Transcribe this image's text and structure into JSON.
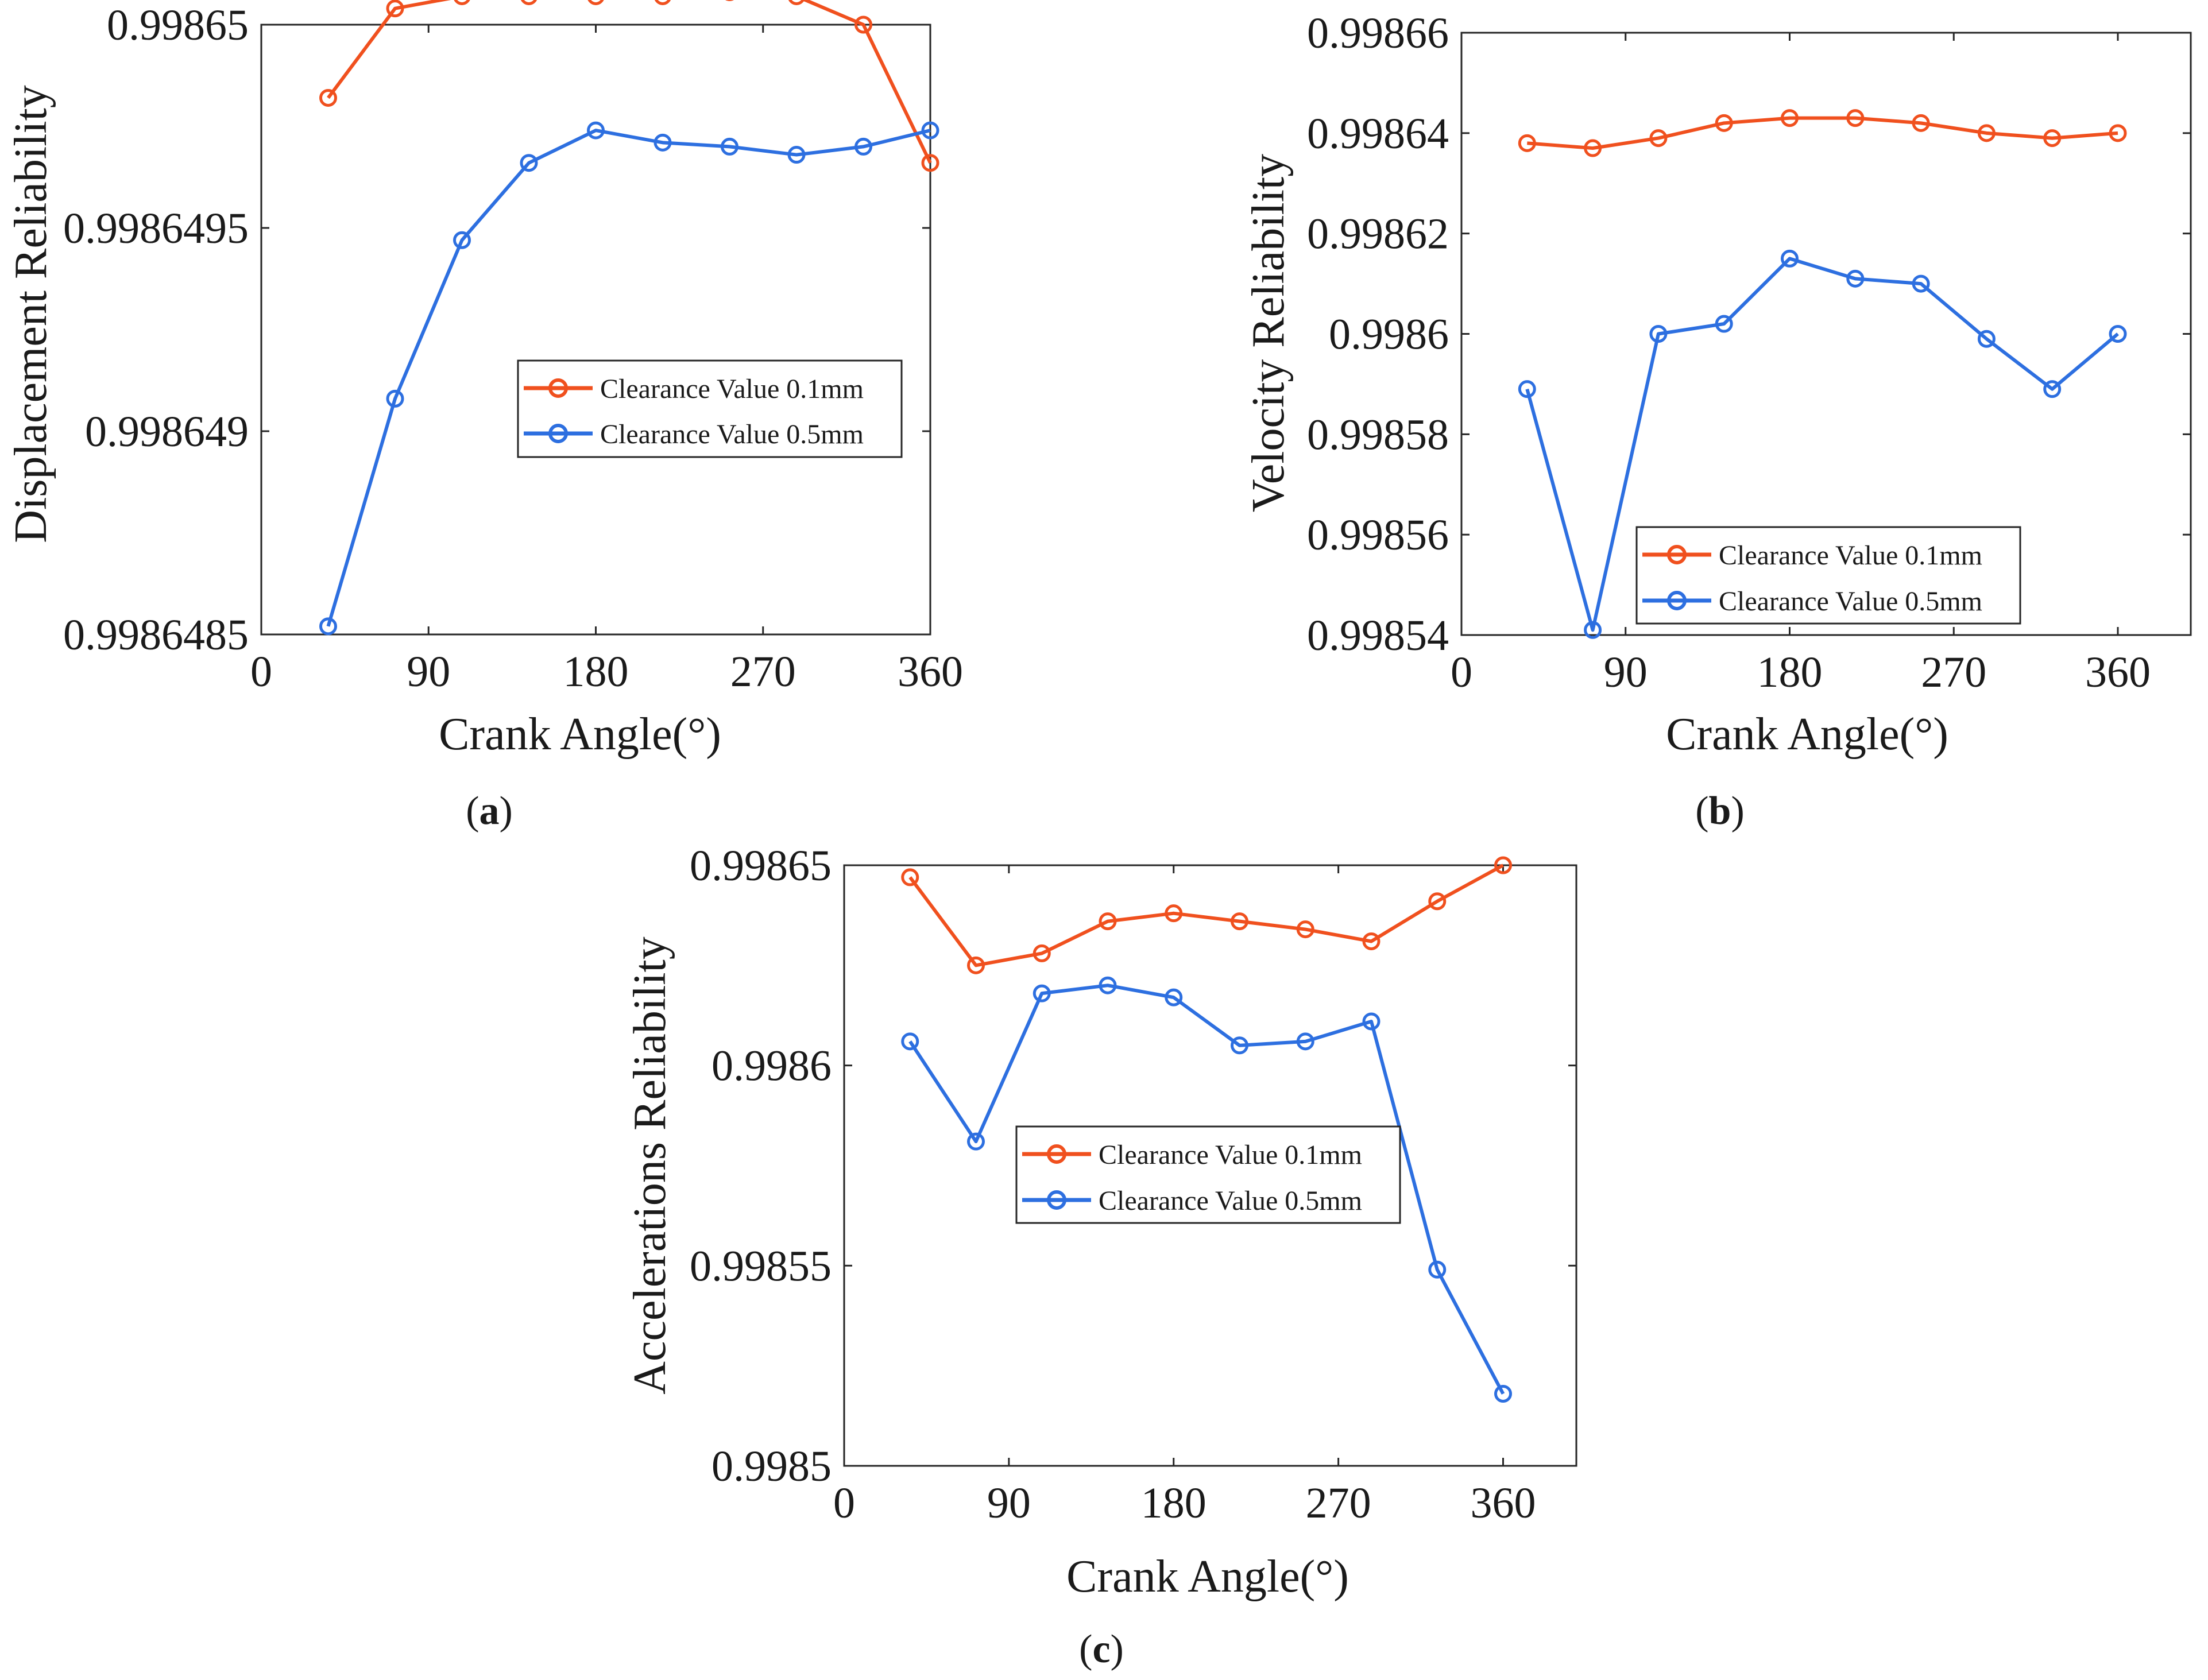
{
  "figure": {
    "legend": [
      "Clearance Value 0.1mm",
      "Clearance Value 0.5mm"
    ],
    "colors": {
      "series_0.1mm": "#f0501e",
      "series_0.5mm": "#2d6fe0",
      "axis": "#262626"
    }
  },
  "chart_data": [
    {
      "panel": "a",
      "type": "line",
      "title": "",
      "xlabel": "Crank Angle(°)",
      "ylabel": "Displacement Reliability",
      "xlim": [
        0,
        360
      ],
      "xticks": [
        0,
        90,
        180,
        270,
        360
      ],
      "xtick_labels": [
        "0",
        "90",
        "180",
        "270",
        "360"
      ],
      "ylim": [
        0.9986485,
        0.99865
      ],
      "yticks": [
        0.9986485,
        0.998649,
        0.9986495,
        0.99865
      ],
      "ytick_labels": [
        "0.9986485",
        "0.998649",
        "0.9986495",
        "0.99865"
      ],
      "x": [
        36,
        72,
        108,
        144,
        180,
        216,
        252,
        288,
        324,
        360
      ],
      "series": [
        {
          "name": "Clearance Value 0.1mm",
          "values": [
            0.99864982,
            0.99865004,
            0.99865007,
            0.99865007,
            0.99865007,
            0.99865007,
            0.99865008,
            0.99865007,
            0.99865,
            0.99864966
          ]
        },
        {
          "name": "Clearance Value 0.5mm",
          "values": [
            0.99864852,
            0.99864908,
            0.99864947,
            0.99864966,
            0.99864974,
            0.99864971,
            0.9986497,
            0.99864968,
            0.9986497,
            0.99864974
          ]
        }
      ],
      "legend_position": "center-right"
    },
    {
      "panel": "b",
      "type": "line",
      "title": "",
      "xlabel": "Crank Angle(°)",
      "ylabel": "Velocity Reliability",
      "xlim": [
        0,
        400
      ],
      "xticks": [
        0,
        90,
        180,
        270,
        360
      ],
      "xtick_labels": [
        "0",
        "90",
        "180",
        "270",
        "360"
      ],
      "ylim": [
        0.99854,
        0.99866
      ],
      "yticks": [
        0.99854,
        0.99856,
        0.99858,
        0.9986,
        0.99862,
        0.99864,
        0.99866
      ],
      "ytick_labels": [
        "0.99854",
        "0.99856",
        "0.99858",
        "0.9986",
        "0.99862",
        "0.99864",
        "0.99866"
      ],
      "x": [
        36,
        72,
        108,
        144,
        180,
        216,
        252,
        288,
        324,
        360
      ],
      "series": [
        {
          "name": "Clearance Value 0.1mm",
          "values": [
            0.998638,
            0.998637,
            0.998639,
            0.998642,
            0.998643,
            0.998643,
            0.998642,
            0.99864,
            0.998639,
            0.99864
          ]
        },
        {
          "name": "Clearance Value 0.5mm",
          "values": [
            0.998589,
            0.998541,
            0.9986,
            0.998602,
            0.998615,
            0.998611,
            0.99861,
            0.998599,
            0.998589,
            0.9986
          ]
        }
      ],
      "legend_position": "bottom-right"
    },
    {
      "panel": "c",
      "type": "line",
      "title": "",
      "xlabel": "Crank Angle(°)",
      "ylabel": "Accelerations Reliability",
      "xlim": [
        0,
        400
      ],
      "xticks": [
        0,
        90,
        180,
        270,
        360
      ],
      "xtick_labels": [
        "0",
        "90",
        "180",
        "270",
        "360"
      ],
      "ylim": [
        0.9985,
        0.99865
      ],
      "yticks": [
        0.9985,
        0.99855,
        0.9986,
        0.99865
      ],
      "ytick_labels": [
        "0.9985",
        "0.99855",
        "0.9986",
        "0.99865"
      ],
      "x": [
        36,
        72,
        108,
        144,
        180,
        216,
        252,
        288,
        324,
        360
      ],
      "series": [
        {
          "name": "Clearance Value 0.1mm",
          "values": [
            0.998647,
            0.998625,
            0.998628,
            0.998636,
            0.998638,
            0.998636,
            0.998634,
            0.998631,
            0.998641,
            0.99865
          ]
        },
        {
          "name": "Clearance Value 0.5mm",
          "values": [
            0.998606,
            0.998581,
            0.998618,
            0.99862,
            0.998617,
            0.998605,
            0.998606,
            0.998611,
            0.998549,
            0.998518
          ]
        }
      ],
      "legend_position": "center-right"
    }
  ],
  "panel_labels": [
    {
      "open": "(",
      "letter": "a",
      "close": ")"
    },
    {
      "open": "(",
      "letter": "b",
      "close": ")"
    },
    {
      "open": "(",
      "letter": "c",
      "close": ")"
    }
  ]
}
